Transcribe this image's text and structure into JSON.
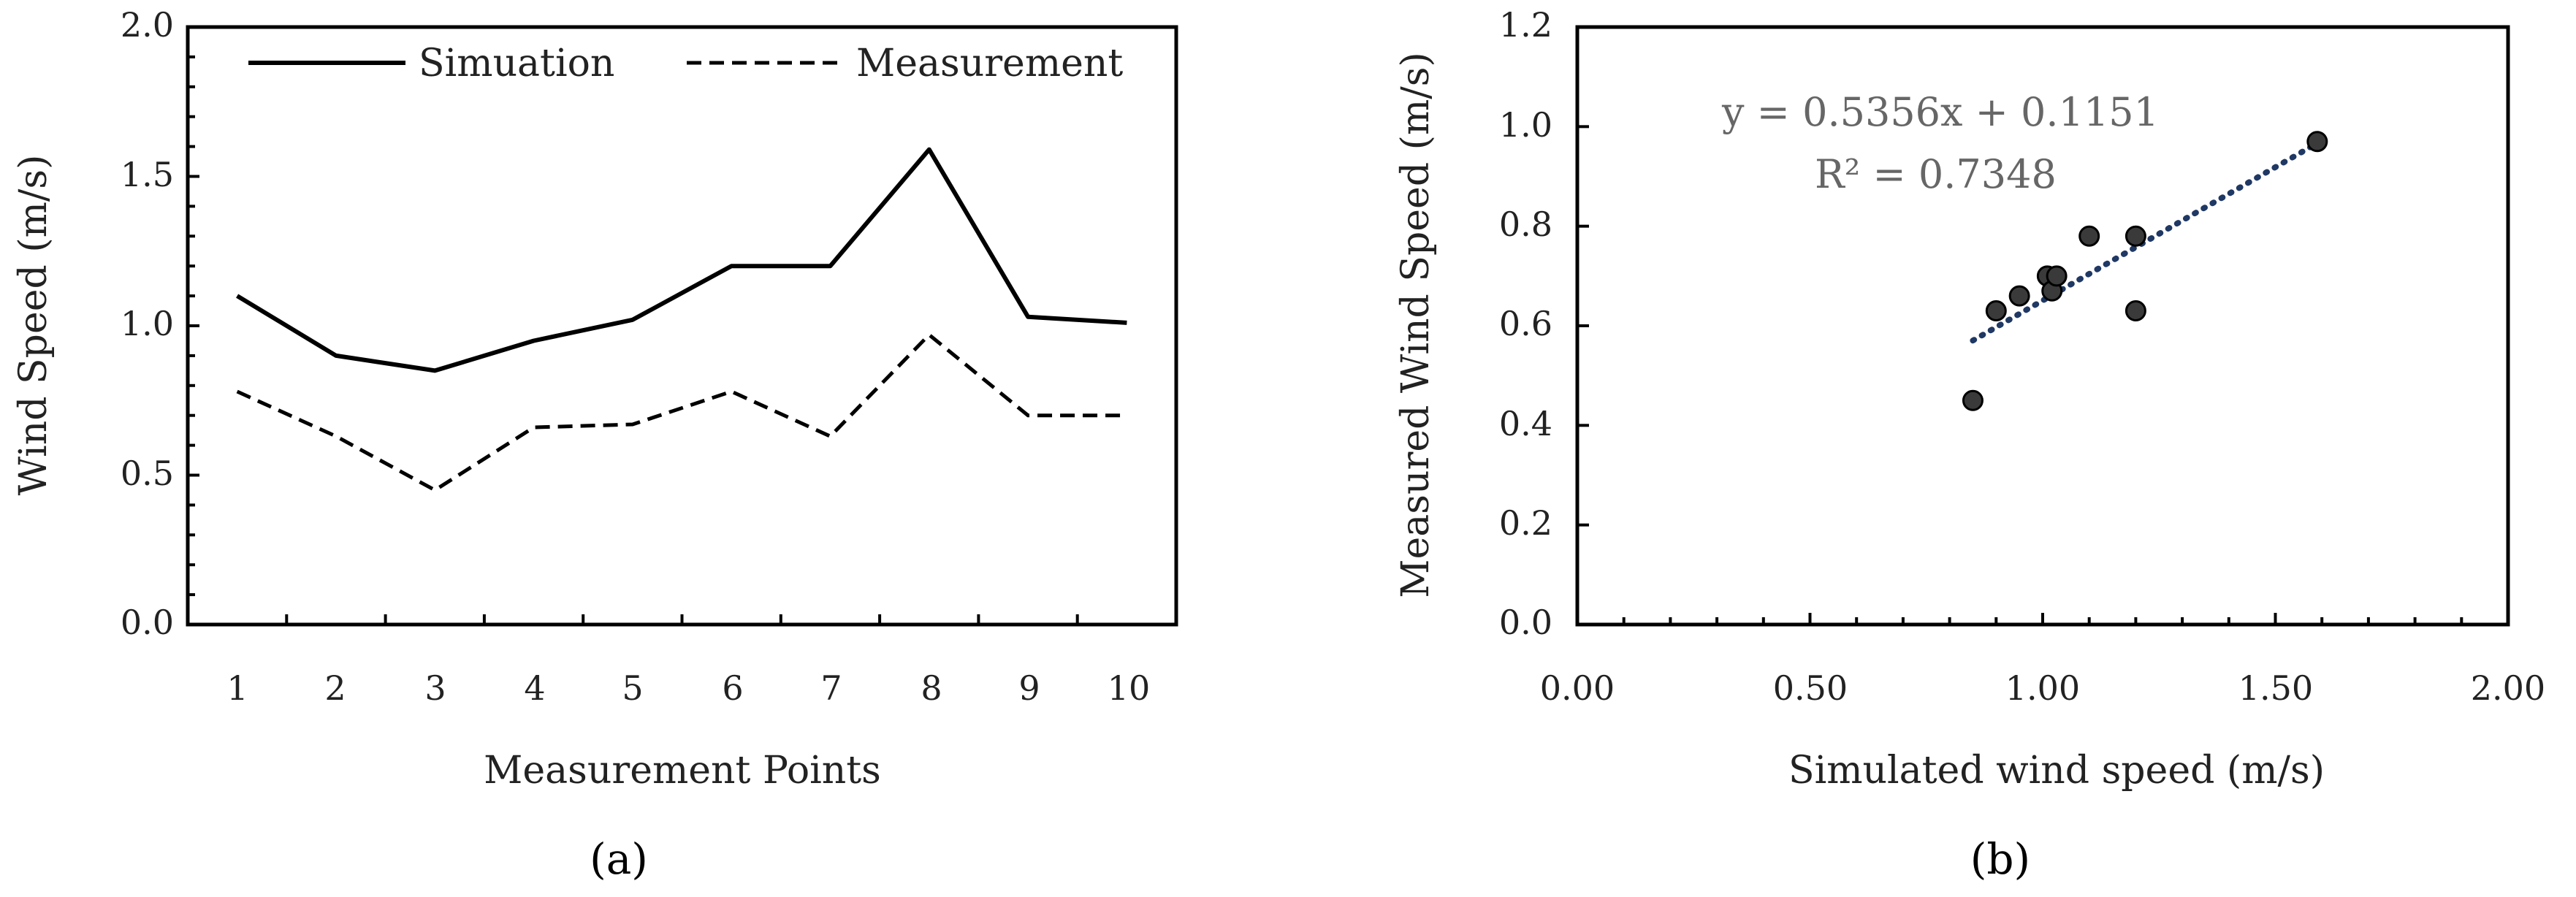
{
  "chart_data": [
    {
      "type": "line",
      "panel_label": "(a)",
      "categories": [
        "1",
        "2",
        "3",
        "4",
        "5",
        "6",
        "7",
        "8",
        "9",
        "10"
      ],
      "series": [
        {
          "name": "Simuation",
          "style": "solid",
          "values": [
            1.1,
            0.9,
            0.85,
            0.95,
            1.02,
            1.2,
            1.2,
            1.59,
            1.03,
            1.01
          ]
        },
        {
          "name": "Measurement",
          "style": "dashed",
          "values": [
            0.78,
            0.63,
            0.45,
            0.66,
            0.67,
            0.78,
            0.63,
            0.97,
            0.7,
            0.7
          ]
        }
      ],
      "xlabel": "Measurement Points",
      "ylabel": "Wind Speed (m/s)",
      "ylim": [
        0.0,
        2.0
      ],
      "yticks": [
        "0.0",
        "0.5",
        "1.0",
        "1.5",
        "2.0"
      ],
      "legend_position": "top"
    },
    {
      "type": "scatter",
      "panel_label": "(b)",
      "points": [
        {
          "x": 0.85,
          "y": 0.45
        },
        {
          "x": 0.9,
          "y": 0.63
        },
        {
          "x": 0.95,
          "y": 0.66
        },
        {
          "x": 1.01,
          "y": 0.7
        },
        {
          "x": 1.02,
          "y": 0.67
        },
        {
          "x": 1.03,
          "y": 0.7
        },
        {
          "x": 1.1,
          "y": 0.78
        },
        {
          "x": 1.2,
          "y": 0.78
        },
        {
          "x": 1.2,
          "y": 0.63
        },
        {
          "x": 1.59,
          "y": 0.97
        }
      ],
      "trendline": {
        "slope": 0.5356,
        "intercept": 0.1151,
        "x_range": [
          0.85,
          1.59
        ],
        "style": "dotted",
        "color": "#1f3864"
      },
      "equation": "y = 0.5356x + 0.1151",
      "r_squared": "R² = 0.7348",
      "xlabel": "Simulated wind speed (m/s)",
      "ylabel": "Measured Wind Speed (m/s)",
      "xlim": [
        0.0,
        2.0
      ],
      "ylim": [
        0.0,
        1.2
      ],
      "xticks": [
        "0.00",
        "0.50",
        "1.00",
        "1.50",
        "2.00"
      ],
      "yticks": [
        "0.0",
        "0.2",
        "0.4",
        "0.6",
        "0.8",
        "1.0",
        "1.2"
      ]
    }
  ],
  "colors": {
    "line": "#000000",
    "marker_fill": "#3a3a3a",
    "marker_edge": "#000000",
    "trend": "#1f3864",
    "equation": "#666666"
  }
}
